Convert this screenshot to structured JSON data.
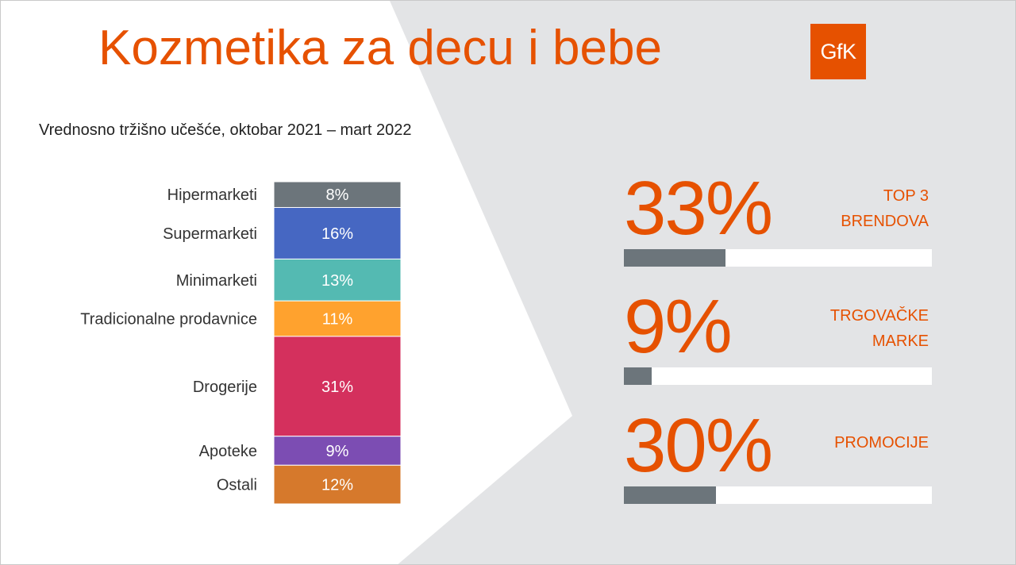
{
  "title": "Kozmetika za decu i bebe",
  "logo": {
    "text": "GfK",
    "icon": "gfk-logo"
  },
  "subtitle": "Vrednosno tržišno učešće, oktobar 2021 – mart 2022",
  "colors": {
    "accent": "#E65100",
    "background_gray": "#E3E4E6",
    "kpi_fill": "#6C757B",
    "label_text": "#333333"
  },
  "chart_data": {
    "type": "bar",
    "orientation": "stacked-vertical-100%",
    "title": "Vrednosno tržišno učešće, oktobar 2021 – mart 2022",
    "categories": [
      "Hipermarketi",
      "Supermarketi",
      "Minimarketi",
      "Tradicionalne prodavnice",
      "Drogerije",
      "Apoteke",
      "Ostali"
    ],
    "values": [
      8,
      16,
      13,
      11,
      31,
      9,
      12
    ],
    "labels": [
      "8%",
      "16%",
      "13%",
      "11%",
      "31%",
      "9%",
      "12%"
    ],
    "colors": [
      "#6C757B",
      "#4667C2",
      "#54BAB2",
      "#FFA22E",
      "#D4305D",
      "#7C4DB3",
      "#D6792C"
    ],
    "unit": "%"
  },
  "kpis": [
    {
      "value": "33%",
      "label": "TOP 3\nBRENDOVA",
      "fraction": 0.33
    },
    {
      "value": "9%",
      "label": "TRGOVAČKE\nMARKE",
      "fraction": 0.09
    },
    {
      "value": "30%",
      "label": "PROMOCIJE",
      "fraction": 0.3
    }
  ]
}
